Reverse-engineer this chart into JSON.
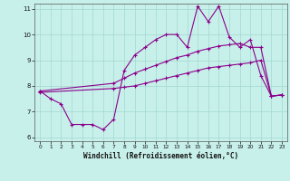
{
  "line1": {
    "x": [
      0,
      1,
      2,
      3,
      4,
      5,
      6,
      7,
      8,
      9,
      10,
      11,
      12,
      13,
      14,
      15,
      16,
      17,
      18,
      19,
      20,
      21,
      22,
      23
    ],
    "y": [
      7.8,
      7.5,
      7.3,
      6.5,
      6.5,
      6.5,
      6.3,
      6.7,
      8.6,
      9.2,
      9.5,
      9.8,
      10.0,
      10.0,
      9.5,
      11.1,
      10.5,
      11.1,
      9.9,
      9.5,
      9.8,
      8.4,
      7.6,
      7.65
    ]
  },
  "line2": {
    "x": [
      0,
      7,
      8,
      9,
      10,
      11,
      12,
      13,
      14,
      15,
      16,
      17,
      18,
      19,
      20,
      21,
      22,
      23
    ],
    "y": [
      7.8,
      8.1,
      8.3,
      8.5,
      8.65,
      8.8,
      8.95,
      9.1,
      9.2,
      9.35,
      9.45,
      9.55,
      9.6,
      9.65,
      9.5,
      9.5,
      7.6,
      7.65
    ]
  },
  "line3": {
    "x": [
      0,
      7,
      8,
      9,
      10,
      11,
      12,
      13,
      14,
      15,
      16,
      17,
      18,
      19,
      20,
      21,
      22,
      23
    ],
    "y": [
      7.75,
      7.9,
      7.95,
      8.0,
      8.1,
      8.2,
      8.3,
      8.4,
      8.5,
      8.6,
      8.7,
      8.75,
      8.8,
      8.85,
      8.9,
      9.0,
      7.6,
      7.65
    ]
  },
  "line_color": "#8b008b",
  "bg_color": "#c8f0ea",
  "grid_color": "#a0d8d0",
  "xlabel": "Windchill (Refroidissement éolien,°C)",
  "xlim": [
    0,
    23
  ],
  "ylim": [
    6,
    11
  ],
  "yticks": [
    6,
    7,
    8,
    9,
    10,
    11
  ],
  "xticks": [
    0,
    1,
    2,
    3,
    4,
    5,
    6,
    7,
    8,
    9,
    10,
    11,
    12,
    13,
    14,
    15,
    16,
    17,
    18,
    19,
    20,
    21,
    22,
    23
  ]
}
